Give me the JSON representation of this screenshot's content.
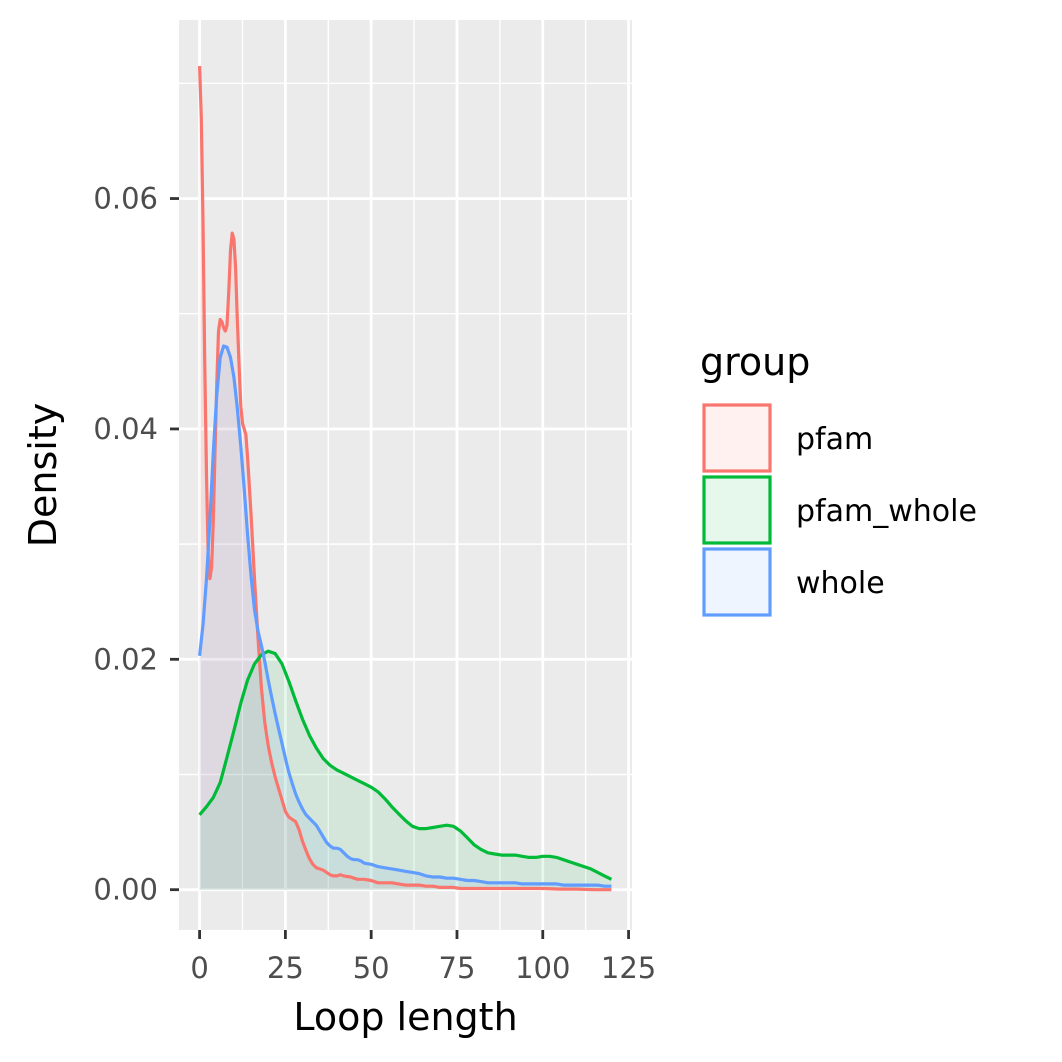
{
  "chart_data": {
    "type": "area",
    "title": "",
    "xlabel": "Loop length",
    "ylabel": "Density",
    "xlim": [
      -6,
      126
    ],
    "ylim": [
      -0.0035,
      0.0755
    ],
    "x_ticks": [
      0,
      25,
      50,
      75,
      100,
      125
    ],
    "x_tick_labels": [
      "0",
      "25",
      "50",
      "75",
      "100",
      "125"
    ],
    "y_ticks": [
      0.0,
      0.02,
      0.04,
      0.06
    ],
    "y_tick_labels": [
      "0.00",
      "0.02",
      "0.04",
      "0.06"
    ],
    "grid": true,
    "panel_background": "#ebebeb",
    "legend": {
      "title": "group",
      "position": "right"
    },
    "series": [
      {
        "name": "pfam",
        "color": "#f8766d",
        "points": [
          [
            0,
            0.0715
          ],
          [
            0.5,
            0.067
          ],
          [
            1,
            0.058
          ],
          [
            1.5,
            0.046
          ],
          [
            2,
            0.036
          ],
          [
            2.5,
            0.029
          ],
          [
            3,
            0.027
          ],
          [
            3.5,
            0.028
          ],
          [
            4,
            0.032
          ],
          [
            4.5,
            0.038
          ],
          [
            5,
            0.044
          ],
          [
            5.5,
            0.0485
          ],
          [
            6,
            0.0495
          ],
          [
            6.5,
            0.0493
          ],
          [
            7,
            0.0488
          ],
          [
            7.5,
            0.0485
          ],
          [
            8,
            0.049
          ],
          [
            8.5,
            0.052
          ],
          [
            9,
            0.0555
          ],
          [
            9.5,
            0.057
          ],
          [
            10,
            0.0565
          ],
          [
            10.5,
            0.054
          ],
          [
            11,
            0.0495
          ],
          [
            11.5,
            0.0455
          ],
          [
            12,
            0.042
          ],
          [
            12.5,
            0.0405
          ],
          [
            13,
            0.04
          ],
          [
            13.5,
            0.0395
          ],
          [
            14,
            0.0375
          ],
          [
            15,
            0.0325
          ],
          [
            16,
            0.027
          ],
          [
            17,
            0.022
          ],
          [
            18,
            0.0175
          ],
          [
            19,
            0.0145
          ],
          [
            20,
            0.0125
          ],
          [
            21,
            0.011
          ],
          [
            22,
            0.0098
          ],
          [
            23,
            0.0088
          ],
          [
            24,
            0.0078
          ],
          [
            25,
            0.0068
          ],
          [
            26,
            0.0063
          ],
          [
            27,
            0.0061
          ],
          [
            28,
            0.0059
          ],
          [
            29,
            0.0052
          ],
          [
            30,
            0.0042
          ],
          [
            31,
            0.0034
          ],
          [
            32,
            0.0027
          ],
          [
            33,
            0.0022
          ],
          [
            34,
            0.0019
          ],
          [
            35,
            0.0018
          ],
          [
            36,
            0.0017
          ],
          [
            37,
            0.0015
          ],
          [
            38,
            0.0013
          ],
          [
            39,
            0.0012
          ],
          [
            40,
            0.0012
          ],
          [
            41,
            0.0013
          ],
          [
            42,
            0.0012
          ],
          [
            44,
            0.0011
          ],
          [
            46,
            0.0009
          ],
          [
            48,
            0.0009
          ],
          [
            50,
            0.0008
          ],
          [
            52,
            0.0006
          ],
          [
            54,
            0.0006
          ],
          [
            56,
            0.0006
          ],
          [
            58,
            0.0005
          ],
          [
            60,
            0.0004
          ],
          [
            62,
            0.0004
          ],
          [
            64,
            0.0004
          ],
          [
            66,
            0.0003
          ],
          [
            68,
            0.0003
          ],
          [
            70,
            0.0002
          ],
          [
            72,
            0.0002
          ],
          [
            74,
            0.0002
          ],
          [
            76,
            0.0001
          ],
          [
            80,
            0.0001
          ],
          [
            85,
            0.0001
          ],
          [
            90,
            0.0001
          ],
          [
            95,
            0.0001
          ],
          [
            100,
            0.0001
          ],
          [
            105,
            5e-05
          ],
          [
            110,
            5e-05
          ],
          [
            115,
            0.0
          ],
          [
            120,
            0.0
          ]
        ]
      },
      {
        "name": "pfam_whole",
        "color": "#00ba38",
        "points": [
          [
            0,
            0.0065
          ],
          [
            2,
            0.0072
          ],
          [
            4,
            0.008
          ],
          [
            6,
            0.0093
          ],
          [
            8,
            0.0115
          ],
          [
            10,
            0.0138
          ],
          [
            12,
            0.0162
          ],
          [
            14,
            0.0182
          ],
          [
            16,
            0.0196
          ],
          [
            18,
            0.0204
          ],
          [
            20,
            0.0207
          ],
          [
            22,
            0.0205
          ],
          [
            24,
            0.0196
          ],
          [
            26,
            0.0181
          ],
          [
            28,
            0.0164
          ],
          [
            30,
            0.0148
          ],
          [
            32,
            0.0134
          ],
          [
            34,
            0.0123
          ],
          [
            36,
            0.0114
          ],
          [
            38,
            0.0108
          ],
          [
            40,
            0.0104
          ],
          [
            42,
            0.0101
          ],
          [
            44,
            0.0098
          ],
          [
            46,
            0.0095
          ],
          [
            48,
            0.0092
          ],
          [
            50,
            0.0089
          ],
          [
            52,
            0.0085
          ],
          [
            54,
            0.0079
          ],
          [
            56,
            0.0072
          ],
          [
            58,
            0.0066
          ],
          [
            60,
            0.006
          ],
          [
            62,
            0.0055
          ],
          [
            64,
            0.0053
          ],
          [
            66,
            0.0053
          ],
          [
            68,
            0.0054
          ],
          [
            70,
            0.0055
          ],
          [
            72,
            0.0056
          ],
          [
            74,
            0.0055
          ],
          [
            76,
            0.0051
          ],
          [
            78,
            0.0045
          ],
          [
            80,
            0.0039
          ],
          [
            82,
            0.0035
          ],
          [
            84,
            0.0032
          ],
          [
            86,
            0.0031
          ],
          [
            88,
            0.003
          ],
          [
            90,
            0.003
          ],
          [
            92,
            0.003
          ],
          [
            94,
            0.0029
          ],
          [
            96,
            0.0028
          ],
          [
            98,
            0.0028
          ],
          [
            100,
            0.0029
          ],
          [
            102,
            0.0029
          ],
          [
            104,
            0.0028
          ],
          [
            106,
            0.0026
          ],
          [
            108,
            0.0024
          ],
          [
            110,
            0.0022
          ],
          [
            112,
            0.002
          ],
          [
            114,
            0.0018
          ],
          [
            116,
            0.0015
          ],
          [
            118,
            0.0012
          ],
          [
            120,
            0.0009
          ]
        ]
      },
      {
        "name": "whole",
        "color": "#619cff",
        "points": [
          [
            0,
            0.0203
          ],
          [
            1,
            0.023
          ],
          [
            2,
            0.027
          ],
          [
            3,
            0.032
          ],
          [
            4,
            0.038
          ],
          [
            5,
            0.043
          ],
          [
            6,
            0.0462
          ],
          [
            7,
            0.0472
          ],
          [
            8,
            0.0471
          ],
          [
            9,
            0.0462
          ],
          [
            10,
            0.0445
          ],
          [
            11,
            0.0418
          ],
          [
            12,
            0.0385
          ],
          [
            13,
            0.0348
          ],
          [
            14,
            0.0308
          ],
          [
            15,
            0.0272
          ],
          [
            16,
            0.0243
          ],
          [
            17,
            0.0225
          ],
          [
            18,
            0.0212
          ],
          [
            19,
            0.0198
          ],
          [
            20,
            0.0182
          ],
          [
            21,
            0.0167
          ],
          [
            22,
            0.0153
          ],
          [
            23,
            0.014
          ],
          [
            24,
            0.0127
          ],
          [
            25,
            0.0114
          ],
          [
            26,
            0.0102
          ],
          [
            27,
            0.0092
          ],
          [
            28,
            0.0083
          ],
          [
            29,
            0.0076
          ],
          [
            30,
            0.007
          ],
          [
            31,
            0.0065
          ],
          [
            32,
            0.0062
          ],
          [
            33,
            0.0059
          ],
          [
            34,
            0.0056
          ],
          [
            35,
            0.0051
          ],
          [
            36,
            0.0046
          ],
          [
            37,
            0.0041
          ],
          [
            38,
            0.0038
          ],
          [
            39,
            0.0036
          ],
          [
            40,
            0.0036
          ],
          [
            41,
            0.0035
          ],
          [
            42,
            0.0032
          ],
          [
            43,
            0.0029
          ],
          [
            44,
            0.0027
          ],
          [
            45,
            0.0026
          ],
          [
            46,
            0.0026
          ],
          [
            47,
            0.0025
          ],
          [
            48,
            0.0023
          ],
          [
            50,
            0.0022
          ],
          [
            52,
            0.002
          ],
          [
            54,
            0.0019
          ],
          [
            56,
            0.0018
          ],
          [
            58,
            0.0017
          ],
          [
            60,
            0.0016
          ],
          [
            62,
            0.0015
          ],
          [
            64,
            0.0014
          ],
          [
            66,
            0.0012
          ],
          [
            68,
            0.0011
          ],
          [
            70,
            0.0011
          ],
          [
            72,
            0.001
          ],
          [
            74,
            0.001
          ],
          [
            76,
            0.0009
          ],
          [
            78,
            0.0008
          ],
          [
            80,
            0.0008
          ],
          [
            82,
            0.0007
          ],
          [
            84,
            0.0006
          ],
          [
            86,
            0.0006
          ],
          [
            88,
            0.0006
          ],
          [
            90,
            0.0006
          ],
          [
            92,
            0.0006
          ],
          [
            94,
            0.0005
          ],
          [
            96,
            0.0005
          ],
          [
            98,
            0.0005
          ],
          [
            100,
            0.0005
          ],
          [
            102,
            0.0005
          ],
          [
            104,
            0.0005
          ],
          [
            106,
            0.0004
          ],
          [
            108,
            0.0004
          ],
          [
            110,
            0.0004
          ],
          [
            112,
            0.0004
          ],
          [
            114,
            0.0004
          ],
          [
            116,
            0.0004
          ],
          [
            118,
            0.0003
          ],
          [
            120,
            0.0003
          ]
        ]
      }
    ]
  }
}
